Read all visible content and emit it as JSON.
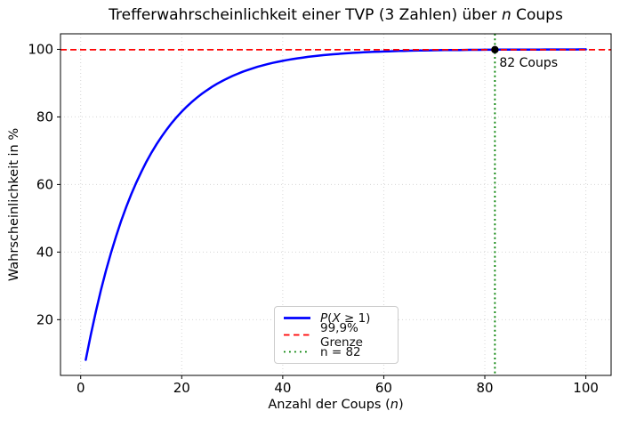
{
  "figure": {
    "title": {
      "pre": "Trefferwahrscheinlichkeit einer TVP (3 Zahlen) über ",
      "italic": "n",
      "post": " Coups"
    },
    "xlabel": {
      "pre": "Anzahl der Coups (",
      "italic": "n",
      "post": ")"
    },
    "ylabel": "Wahrscheinlichkeit in %"
  },
  "legend": {
    "entries": [
      {
        "color": "#0000ff",
        "style": "solid",
        "label_parts": {
          "p_italic": "P",
          "open": "(",
          "x_italic": "X",
          "rest": " ≥ 1)"
        }
      },
      {
        "color": "#ff0000",
        "style": "dashed",
        "label": "99,9% Grenze"
      },
      {
        "color": "#008000",
        "style": "dotted",
        "label": "n = 82"
      }
    ]
  },
  "annotation": {
    "text": "82 Coups"
  },
  "chart_data": {
    "type": "line",
    "title": "Trefferwahrscheinlichkeit einer TVP (3 Zahlen) über n Coups",
    "xlabel": "Anzahl der Coups (n)",
    "ylabel": "Wahrscheinlichkeit in %",
    "x_start": 1,
    "x_step": 1,
    "series": [
      {
        "name": "P(X ≥ 1)",
        "color": "#0000ff",
        "values": [
          8.11,
          15.56,
          22.41,
          28.7,
          34.48,
          39.79,
          44.67,
          49.16,
          53.28,
          57.07,
          60.55,
          63.75,
          66.69,
          69.39,
          71.87,
          74.15,
          76.25,
          78.17,
          79.94,
          81.57,
          83.06,
          84.44,
          85.7,
          86.86,
          87.92,
          88.9,
          89.8,
          90.63,
          91.39,
          92.09,
          92.73,
          93.32,
          93.86,
          94.36,
          94.82,
          95.24,
          95.62,
          95.98,
          96.3,
          96.6,
          96.88,
          97.13,
          97.36,
          97.58,
          97.77,
          97.95,
          98.12,
          98.27,
          98.41,
          98.54,
          98.66,
          98.77,
          98.87,
          98.96,
          99.04,
          99.12,
          99.19,
          99.26,
          99.32,
          99.37,
          99.42,
          99.47,
          99.51,
          99.55,
          99.59,
          99.62,
          99.65,
          99.68,
          99.71,
          99.73,
          99.75,
          99.77,
          99.79,
          99.81,
          99.82,
          99.84,
          99.85,
          99.86,
          99.87,
          99.88,
          99.89,
          99.9,
          99.91,
          99.92,
          99.92,
          99.93,
          99.94,
          99.94,
          99.95,
          99.95,
          99.95,
          99.96,
          99.96,
          99.96,
          99.97,
          99.97,
          99.97,
          99.97,
          99.98,
          99.98
        ]
      }
    ],
    "hline": {
      "y": 99.9,
      "color": "#ff0000",
      "style": "dashed",
      "label": "99,9% Grenze"
    },
    "vline": {
      "x": 82,
      "color": "#008000",
      "style": "dotted",
      "label": "n = 82"
    },
    "point": {
      "x": 82,
      "y": 99.9,
      "color": "#000000",
      "label": "82 Coups"
    },
    "xlim": [
      -4,
      105
    ],
    "ylim": [
      3.5,
      104.6
    ],
    "xticks": [
      0,
      20,
      40,
      60,
      80,
      100
    ],
    "yticks": [
      20,
      40,
      60,
      80,
      100
    ],
    "grid": true,
    "legend_position": "lower center"
  }
}
